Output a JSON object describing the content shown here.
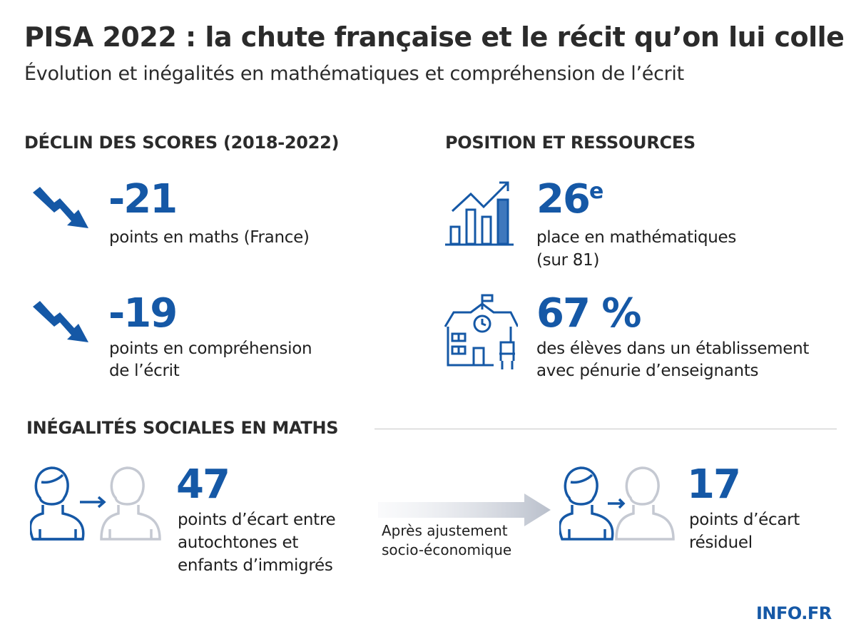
{
  "header": {
    "title": "PISA 2022 : la chute française et le récit qu’on lui colle",
    "subtitle": "Évolution et inégalités en mathématiques et compréhension de l’écrit"
  },
  "decline": {
    "heading": "DÉCLIN DES SCORES (2018-2022)",
    "items": [
      {
        "icon": "trend-down-arrow-icon",
        "value": "-21",
        "line1": "points en maths (France)",
        "line2": ""
      },
      {
        "icon": "trend-down-arrow-icon",
        "value": "-19",
        "line1": "points en compréhension",
        "line2": "de l’écrit"
      }
    ]
  },
  "position": {
    "heading": "POSITION ET RESSOURCES",
    "rank": {
      "icon": "bar-chart-growth-icon",
      "value": "26",
      "suffix": "e",
      "line1": "place en mathématiques",
      "line2": "(sur 81)"
    },
    "shortage": {
      "icon": "school-building-icon",
      "value": "67 %",
      "line1": "des élèves dans un établissement",
      "line2": "avec pénurie d’enseignants"
    }
  },
  "inequality": {
    "heading": "INÉGALITÉS SOCIALES EN MATHS",
    "gap": {
      "icon": "two-people-icon",
      "value": "47",
      "lines": [
        "points d’écart entre",
        "autochtones et",
        "enfants d’immigrés"
      ]
    },
    "adjustment": {
      "icon": "arrow-right-icon",
      "lines": [
        "Après ajustement",
        "socio-économique"
      ]
    },
    "residual": {
      "icon": "two-people-icon",
      "value": "17",
      "lines": [
        "points d’écart",
        "résiduel"
      ]
    }
  },
  "brand": "INFO.FR",
  "colors": {
    "accent": "#1558a6",
    "text": "#1f1f1f",
    "muted_icon": "#c5c9d2"
  }
}
